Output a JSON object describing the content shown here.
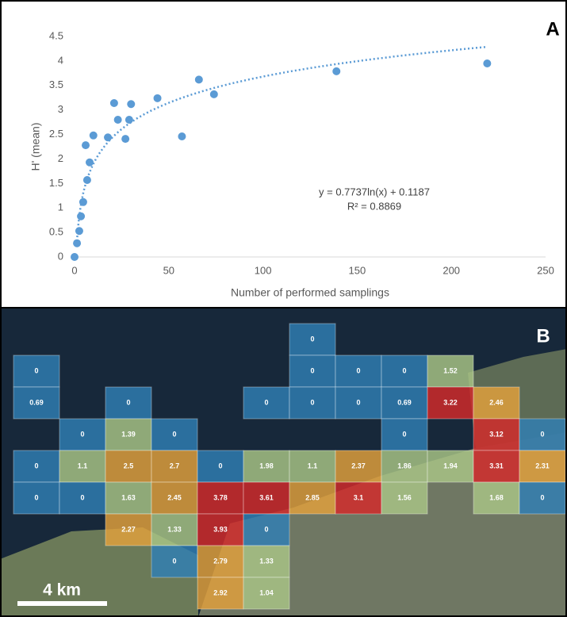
{
  "chart_data": [
    {
      "type": "scatter",
      "panel_label": "A",
      "x_label": "Number of performed samplings",
      "y_label": "H' (mean)",
      "x": [
        0,
        1.3,
        2.5,
        3.4,
        4.6,
        6.7,
        8,
        5.9,
        10,
        17.7,
        21,
        23,
        27,
        29,
        30,
        44,
        57,
        66,
        74,
        139,
        219
      ],
      "values": [
        0,
        0.28,
        0.53,
        0.83,
        1.12,
        1.57,
        1.93,
        2.28,
        2.48,
        2.44,
        3.14,
        2.8,
        2.41,
        2.8,
        3.12,
        3.24,
        2.46,
        3.62,
        3.32,
        3.79,
        3.95
      ],
      "color": "#5b9bd5",
      "xlim": [
        0,
        250
      ],
      "xticks": [
        0,
        50,
        100,
        150,
        200,
        250
      ],
      "ylim": [
        0,
        4.5
      ],
      "yticks": [
        0,
        0.5,
        1,
        1.5,
        2,
        2.5,
        3,
        3.5,
        4,
        4.5
      ],
      "fit": {
        "coef": [
          0.7737,
          0.1187
        ],
        "equation": "y = 0.7737ln(x) + 0.1187",
        "r2": "R² = 0.8869"
      }
    },
    {
      "type": "grid",
      "panel_label": "B",
      "scale_label": "4 km",
      "rows": [
        [
          null,
          null,
          null,
          null,
          null,
          null,
          0,
          null,
          null,
          null,
          null,
          null
        ],
        [
          0,
          null,
          null,
          null,
          null,
          null,
          0,
          0,
          0,
          1.52,
          null,
          null
        ],
        [
          0.69,
          null,
          0,
          null,
          null,
          0,
          0,
          0,
          0.69,
          3.22,
          2.46,
          null
        ],
        [
          null,
          0,
          1.39,
          0,
          null,
          null,
          null,
          null,
          0,
          null,
          3.12,
          0
        ],
        [
          0,
          1.1,
          2.5,
          2.7,
          0,
          1.98,
          1.1,
          2.37,
          1.86,
          1.94,
          3.31,
          2.31
        ],
        [
          0,
          0,
          1.63,
          2.45,
          3.78,
          3.61,
          2.85,
          3.1,
          1.56,
          null,
          1.68,
          0
        ],
        [
          null,
          null,
          2.27,
          1.33,
          3.93,
          0,
          null,
          null,
          null,
          null,
          null,
          null
        ],
        [
          null,
          null,
          null,
          0,
          2.79,
          1.33,
          null,
          null,
          null,
          null,
          null,
          null
        ],
        [
          null,
          null,
          null,
          null,
          2.92,
          1.04,
          null,
          null,
          null,
          null,
          null,
          null
        ]
      ],
      "colors": [
        [
          null,
          null,
          null,
          null,
          null,
          null,
          "#2f7fb5",
          null,
          null,
          null,
          null,
          null
        ],
        [
          "#2f7fb5",
          null,
          null,
          null,
          null,
          null,
          "#2f7fb5",
          "#2f7fb5",
          "#2f7fb5",
          "#a9c686",
          null,
          null
        ],
        [
          "#2f7fb5",
          null,
          "#2f7fb5",
          null,
          null,
          "#2f7fb5",
          "#2f7fb5",
          "#2f7fb5",
          "#2f7fb5",
          "#d42a2a",
          "#e3a13c",
          null
        ],
        [
          null,
          "#2f7fb5",
          "#a9c686",
          "#2f7fb5",
          null,
          null,
          null,
          null,
          "#2f7fb5",
          null,
          "#d42a2a",
          "#2f7fb5"
        ],
        [
          "#2f7fb5",
          "#a9c686",
          "#e3a13c",
          "#e3a13c",
          "#2f7fb5",
          "#a9c686",
          "#a9c686",
          "#e3a13c",
          "#a9c686",
          "#a9c686",
          "#d42a2a",
          "#e3a13c"
        ],
        [
          "#2f7fb5",
          "#2f7fb5",
          "#a9c686",
          "#e3a13c",
          "#d42a2a",
          "#d42a2a",
          "#e3a13c",
          "#d42a2a",
          "#a9c686",
          null,
          "#a9c686",
          "#2f7fb5"
        ],
        [
          null,
          null,
          "#e3a13c",
          "#a9c686",
          "#d42a2a",
          "#2f7fb5",
          null,
          null,
          null,
          null,
          null,
          null
        ],
        [
          null,
          null,
          null,
          "#2f7fb5",
          "#e3a13c",
          "#a9c686",
          null,
          null,
          null,
          null,
          null,
          null
        ],
        [
          null,
          null,
          null,
          null,
          "#e3a13c",
          "#a9c686",
          null,
          null,
          null,
          null,
          null,
          null
        ]
      ]
    }
  ]
}
